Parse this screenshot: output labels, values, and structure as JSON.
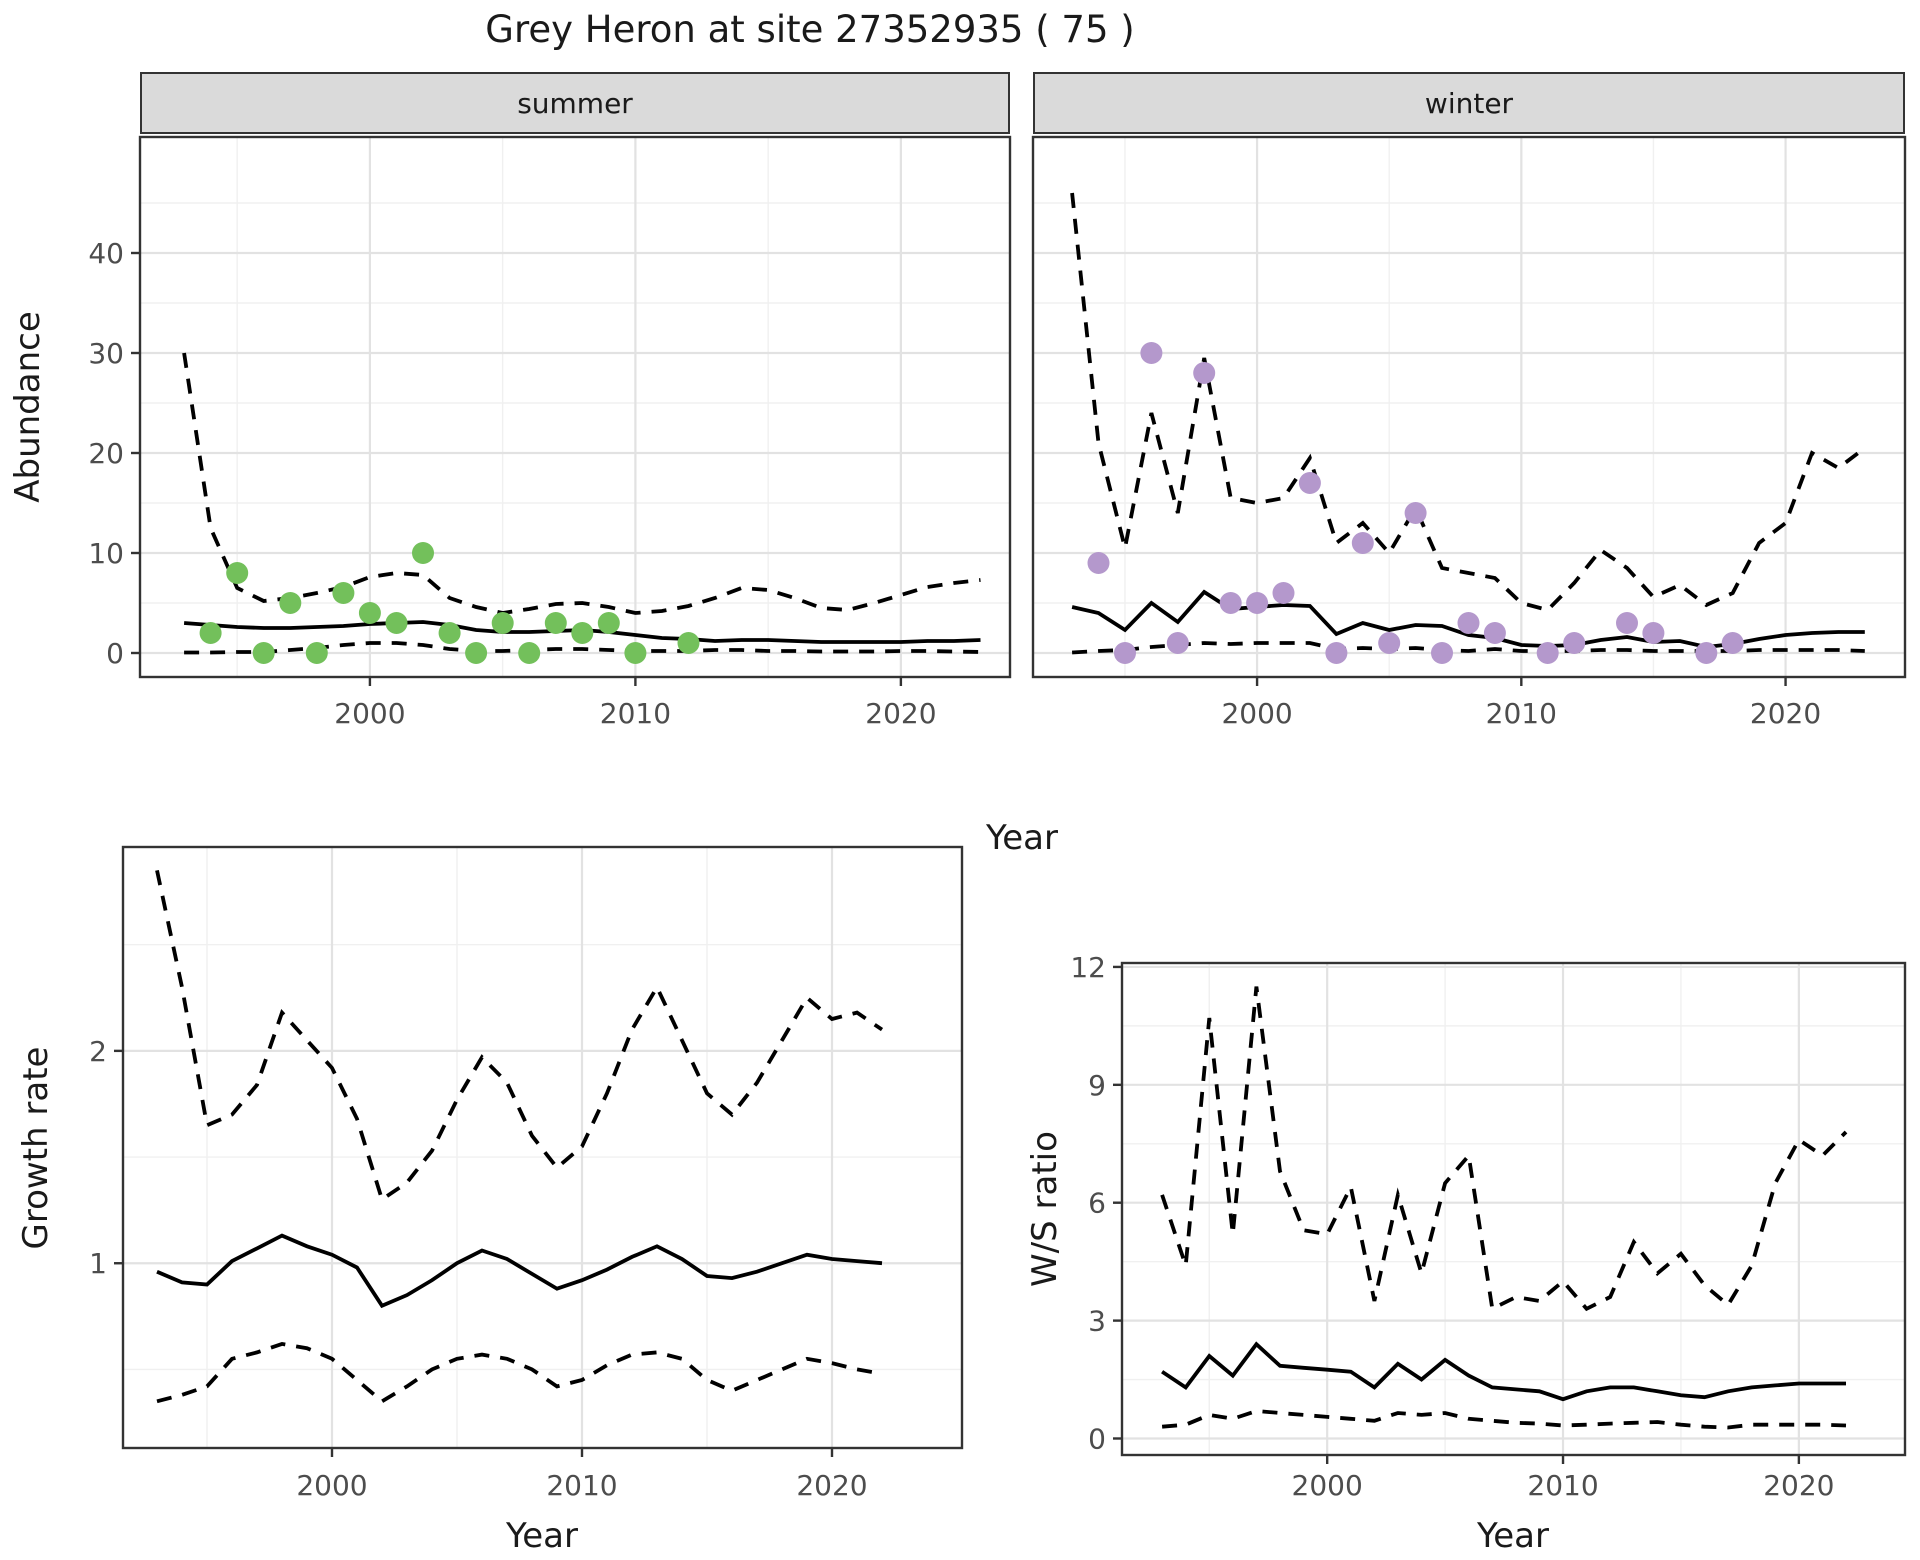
{
  "title": "Grey Heron at site 27352935 ( 75 )",
  "colors": {
    "summer_points": "#73C05B",
    "winter_points": "#B498CC",
    "line": "#000000",
    "grid_major": "#E2E2E2",
    "grid_minor": "#F0F0F0",
    "strip_bg": "#DADADA",
    "panel_border": "#333333",
    "tick_text": "#4d4d4d",
    "title_text": "#1a1a1a"
  },
  "facets": {
    "summer": "summer",
    "winter": "winter"
  },
  "axis_titles": {
    "abundance": "Abundance",
    "year_top": "Year",
    "growth": "Growth rate",
    "ws": "W/S ratio",
    "year_bottom_left": "Year",
    "year_bottom_right": "Year"
  },
  "chart_data": [
    {
      "id": "abundance_summer",
      "type": "line",
      "facet": "summer",
      "xlabel": "Year",
      "ylabel": "Abundance",
      "xlim": [
        1991.34,
        2024.11
      ],
      "ylim": [
        -2.4,
        51.6
      ],
      "xticks": [
        2000,
        2010,
        2020
      ],
      "x_minor": [
        1995,
        2005,
        2015
      ],
      "yticks": [
        0,
        10,
        20,
        30,
        40
      ],
      "y_minor": [
        5,
        15,
        25,
        35,
        45
      ],
      "years": [
        1993,
        1994,
        1995,
        1996,
        1997,
        1998,
        1999,
        2000,
        2001,
        2002,
        2003,
        2004,
        2005,
        2006,
        2007,
        2008,
        2009,
        2010,
        2011,
        2012,
        2013,
        2014,
        2015,
        2016,
        2017,
        2018,
        2019,
        2020,
        2021,
        2022,
        2023
      ],
      "series": [
        {
          "name": "median",
          "style": "solid",
          "values": [
            3.0,
            2.8,
            2.6,
            2.5,
            2.5,
            2.6,
            2.7,
            2.9,
            3.0,
            3.1,
            2.8,
            2.3,
            2.1,
            2.1,
            2.2,
            2.3,
            2.1,
            1.8,
            1.5,
            1.4,
            1.2,
            1.3,
            1.3,
            1.2,
            1.1,
            1.1,
            1.1,
            1.1,
            1.2,
            1.2,
            1.3
          ]
        },
        {
          "name": "upper_ci",
          "style": "dashed",
          "values": [
            30,
            12.5,
            6.5,
            5.2,
            5.5,
            6.0,
            6.6,
            7.6,
            8.0,
            7.8,
            5.5,
            4.6,
            4.0,
            4.4,
            4.9,
            5.0,
            4.6,
            4.0,
            4.2,
            4.7,
            5.5,
            6.5,
            6.3,
            5.5,
            4.5,
            4.3,
            5.0,
            5.8,
            6.6,
            7.0,
            7.3
          ]
        },
        {
          "name": "lower_ci",
          "style": "dashed",
          "values": [
            0.05,
            0.05,
            0.1,
            0.1,
            0.3,
            0.5,
            0.8,
            1.0,
            1.0,
            0.8,
            0.4,
            0.2,
            0.2,
            0.3,
            0.4,
            0.4,
            0.3,
            0.2,
            0.2,
            0.2,
            0.3,
            0.3,
            0.2,
            0.2,
            0.15,
            0.15,
            0.15,
            0.2,
            0.2,
            0.15,
            0.1
          ]
        }
      ],
      "observations": {
        "color_key": "summer_points",
        "years": [
          1994,
          1995,
          1996,
          1997,
          1998,
          1999,
          2000,
          2001,
          2002,
          2003,
          2004,
          2005,
          2006,
          2007,
          2008,
          2009,
          2010,
          2012
        ],
        "values": [
          2,
          8,
          0,
          5,
          0,
          6,
          4,
          3,
          10,
          2,
          0,
          3,
          0,
          3,
          2,
          3,
          0,
          1
        ]
      }
    },
    {
      "id": "abundance_winter",
      "type": "line",
      "facet": "winter",
      "xlabel": "Year",
      "ylabel": "Abundance",
      "xlim": [
        1991.52,
        2024.52
      ],
      "ylim": [
        -2.4,
        51.6
      ],
      "xticks": [
        2000,
        2010,
        2020
      ],
      "x_minor": [
        1995,
        2005,
        2015
      ],
      "yticks": [
        0,
        10,
        20,
        30,
        40
      ],
      "y_minor": [
        5,
        15,
        25,
        35,
        45
      ],
      "years": [
        1993,
        1994,
        1995,
        1996,
        1997,
        1998,
        1999,
        2000,
        2001,
        2002,
        2003,
        2004,
        2005,
        2006,
        2007,
        2008,
        2009,
        2010,
        2011,
        2012,
        2013,
        2014,
        2015,
        2016,
        2017,
        2018,
        2019,
        2020,
        2021,
        2022,
        2023
      ],
      "series": [
        {
          "name": "median",
          "style": "solid",
          "values": [
            4.6,
            4.0,
            2.3,
            5.0,
            3.1,
            6.1,
            4.4,
            4.6,
            4.8,
            4.7,
            1.9,
            3.0,
            2.3,
            2.8,
            2.7,
            1.8,
            1.5,
            0.8,
            0.7,
            0.8,
            1.3,
            1.6,
            1.1,
            1.2,
            0.6,
            0.9,
            1.4,
            1.8,
            2.0,
            2.1,
            2.1
          ]
        },
        {
          "name": "upper_ci",
          "style": "dashed",
          "values": [
            46,
            21,
            10.5,
            24,
            14,
            29.5,
            15.5,
            15,
            15.5,
            19.5,
            11,
            13,
            10,
            14.5,
            8.5,
            8,
            7.5,
            5,
            4.3,
            7,
            10.3,
            8.5,
            5.6,
            6.8,
            4.8,
            6,
            11,
            13,
            20,
            18.5,
            20.5
          ]
        },
        {
          "name": "lower_ci",
          "style": "dashed",
          "values": [
            0.05,
            0.2,
            0.3,
            0.6,
            0.8,
            1.0,
            0.9,
            1.0,
            1.0,
            1.0,
            0.4,
            0.5,
            0.4,
            0.5,
            0.3,
            0.2,
            0.4,
            0.2,
            0.2,
            0.2,
            0.3,
            0.3,
            0.2,
            0.2,
            0.2,
            0.2,
            0.3,
            0.3,
            0.3,
            0.3,
            0.2
          ]
        }
      ],
      "observations": {
        "color_key": "winter_points",
        "years": [
          1994,
          1995,
          1996,
          1997,
          1998,
          1999,
          2000,
          2001,
          2002,
          2003,
          2004,
          2005,
          2006,
          2007,
          2008,
          2009,
          2011,
          2012,
          2014,
          2015,
          2017,
          2018
        ],
        "values": [
          9,
          0,
          30,
          1,
          28,
          5,
          5,
          6,
          17,
          0,
          11,
          1,
          14,
          0,
          3,
          2,
          0,
          1,
          3,
          2,
          0,
          1
        ]
      }
    },
    {
      "id": "growth_rate",
      "type": "line",
      "xlabel": "Year",
      "ylabel": "Growth rate",
      "xlim": [
        1991.64,
        2025.2
      ],
      "ylim": [
        0.13,
        2.96
      ],
      "xticks": [
        2000,
        2010,
        2020
      ],
      "x_minor": [
        1995,
        2005,
        2015
      ],
      "yticks": [
        1,
        2
      ],
      "y_minor": [
        0.5,
        1.5,
        2.5
      ],
      "years": [
        1993,
        1994,
        1995,
        1996,
        1997,
        1998,
        1999,
        2000,
        2001,
        2002,
        2003,
        2004,
        2005,
        2006,
        2007,
        2008,
        2009,
        2010,
        2011,
        2012,
        2013,
        2014,
        2015,
        2016,
        2017,
        2018,
        2019,
        2020,
        2021,
        2022
      ],
      "series": [
        {
          "name": "median",
          "style": "solid",
          "values": [
            0.96,
            0.91,
            0.9,
            1.01,
            1.07,
            1.13,
            1.08,
            1.04,
            0.98,
            0.8,
            0.85,
            0.92,
            1.0,
            1.06,
            1.02,
            0.95,
            0.88,
            0.92,
            0.97,
            1.03,
            1.08,
            1.02,
            0.94,
            0.93,
            0.96,
            1.0,
            1.04,
            1.02,
            1.01,
            1.0
          ]
        },
        {
          "name": "upper_ci",
          "style": "dashed",
          "values": [
            2.85,
            2.3,
            1.65,
            1.7,
            1.84,
            2.18,
            2.05,
            1.92,
            1.68,
            1.3,
            1.38,
            1.53,
            1.77,
            1.97,
            1.85,
            1.6,
            1.45,
            1.55,
            1.8,
            2.1,
            2.3,
            2.05,
            1.8,
            1.7,
            1.85,
            2.05,
            2.25,
            2.15,
            2.18,
            2.1
          ]
        },
        {
          "name": "lower_ci",
          "style": "dashed",
          "values": [
            0.35,
            0.38,
            0.42,
            0.55,
            0.58,
            0.62,
            0.6,
            0.55,
            0.45,
            0.35,
            0.42,
            0.5,
            0.55,
            0.57,
            0.55,
            0.5,
            0.42,
            0.45,
            0.52,
            0.57,
            0.58,
            0.55,
            0.45,
            0.4,
            0.45,
            0.5,
            0.55,
            0.53,
            0.5,
            0.48
          ]
        }
      ]
    },
    {
      "id": "ws_ratio",
      "type": "line",
      "xlabel": "Year",
      "ylabel": "W/S ratio",
      "xlim": [
        1991.3,
        2024.5
      ],
      "ylim": [
        -0.42,
        12.1
      ],
      "xticks": [
        2000,
        2010,
        2020
      ],
      "x_minor": [
        1995,
        2005,
        2015
      ],
      "yticks": [
        0,
        3,
        6,
        9,
        12
      ],
      "y_minor": [
        1.5,
        4.5,
        7.5,
        10.5
      ],
      "years": [
        1993,
        1994,
        1995,
        1996,
        1997,
        1998,
        1999,
        2000,
        2001,
        2002,
        2003,
        2004,
        2005,
        2006,
        2007,
        2008,
        2009,
        2010,
        2011,
        2012,
        2013,
        2014,
        2015,
        2016,
        2017,
        2018,
        2019,
        2020,
        2021,
        2022
      ],
      "series": [
        {
          "name": "median",
          "style": "solid",
          "values": [
            1.7,
            1.3,
            2.1,
            1.6,
            2.4,
            1.85,
            1.8,
            1.75,
            1.7,
            1.3,
            1.9,
            1.5,
            2.0,
            1.6,
            1.3,
            1.25,
            1.2,
            1.0,
            1.2,
            1.3,
            1.3,
            1.2,
            1.1,
            1.05,
            1.2,
            1.3,
            1.35,
            1.4,
            1.4,
            1.4
          ]
        },
        {
          "name": "upper_ci",
          "style": "dashed",
          "values": [
            6.2,
            4.4,
            10.7,
            5.2,
            11.5,
            6.8,
            5.3,
            5.2,
            6.4,
            3.5,
            6.2,
            4.2,
            6.5,
            7.2,
            3.3,
            3.6,
            3.5,
            4.0,
            3.3,
            3.6,
            5.0,
            4.2,
            4.7,
            3.9,
            3.4,
            4.4,
            6.5,
            7.6,
            7.2,
            7.8
          ]
        },
        {
          "name": "lower_ci",
          "style": "dashed",
          "values": [
            0.3,
            0.35,
            0.6,
            0.5,
            0.7,
            0.65,
            0.6,
            0.55,
            0.5,
            0.45,
            0.65,
            0.6,
            0.65,
            0.5,
            0.45,
            0.4,
            0.38,
            0.33,
            0.35,
            0.38,
            0.4,
            0.42,
            0.35,
            0.3,
            0.28,
            0.35,
            0.35,
            0.35,
            0.35,
            0.33
          ]
        }
      ]
    }
  ]
}
